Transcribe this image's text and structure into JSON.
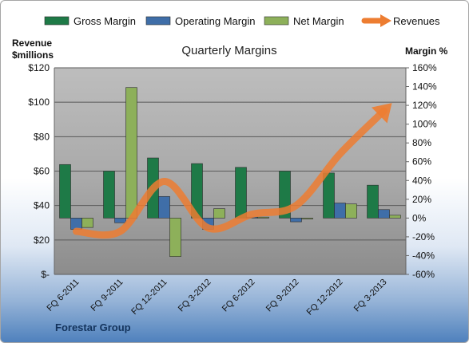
{
  "chart_data": {
    "type": "bar",
    "title": "Quarterly Margins",
    "footer": "Forestar Group",
    "y_left_label": [
      "Revenue",
      "$millions"
    ],
    "y_right_label": "Margin %",
    "categories": [
      "FQ 6-2011",
      "FQ 9-2011",
      "FQ 12-2011",
      "FQ 3-2012",
      "FQ 6-2012",
      "FQ 9-2012",
      "FQ 12-2012",
      "FQ 3-2013"
    ],
    "y_left_ticks": [
      "$-",
      "$20",
      "$40",
      "$60",
      "$80",
      "$100",
      "$120"
    ],
    "y_left_range": [
      0,
      120
    ],
    "y_right_ticks": [
      "-60%",
      "-40%",
      "-20%",
      "0%",
      "20%",
      "40%",
      "60%",
      "80%",
      "100%",
      "120%",
      "140%",
      "160%"
    ],
    "y_right_range": [
      -60,
      160
    ],
    "series": [
      {
        "name": "Gross Margin",
        "axis": "right",
        "kind": "bar",
        "color": "#1e7a47",
        "values": [
          57,
          50,
          64,
          58,
          54,
          50,
          48,
          35
        ]
      },
      {
        "name": "Operating Margin",
        "axis": "right",
        "kind": "bar",
        "color": "#3f6ea8",
        "values": [
          -12,
          -5,
          23,
          -12,
          1,
          -4,
          16,
          9
        ]
      },
      {
        "name": "Net Margin",
        "axis": "right",
        "kind": "bar",
        "color": "#8db05a",
        "values": [
          -10,
          139,
          -41,
          10,
          1,
          -1,
          15,
          3
        ]
      },
      {
        "name": "Revenues",
        "axis": "left",
        "kind": "line",
        "color": "#ed7d31",
        "values": [
          25,
          25,
          54,
          27,
          35,
          40,
          70,
          95
        ]
      }
    ],
    "grid": true,
    "legend_position": "top"
  }
}
